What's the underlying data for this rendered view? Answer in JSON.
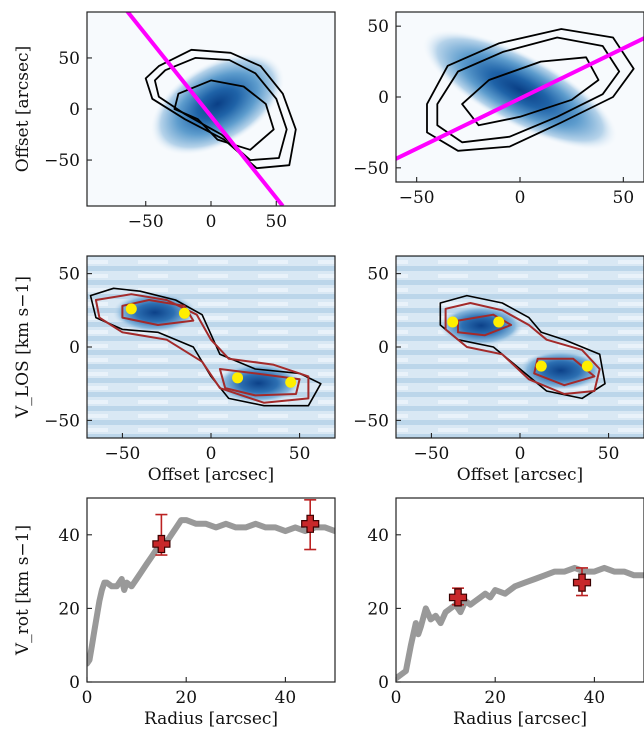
{
  "chart_data": [
    {
      "type": "contour",
      "panel": "moment-map-left",
      "xlabel": "",
      "ylabel": "Offset [arcsec]",
      "xlim": [
        -95,
        95
      ],
      "ylim": [
        -95,
        95
      ],
      "xticks": [
        -50,
        0,
        50
      ],
      "yticks": [
        -50,
        0,
        50
      ],
      "xtick_labels": [
        "−50",
        "0",
        "50"
      ],
      "ytick_labels": [
        "−50",
        "0",
        "50"
      ],
      "cloud": {
        "cx": 5,
        "cy": 5,
        "rx": 45,
        "ry": 32,
        "angle_deg": -30
      },
      "contour_levels": [
        [
          [
            -40,
            42
          ],
          [
            -15,
            58
          ],
          [
            15,
            55
          ],
          [
            38,
            42
          ],
          [
            55,
            15
          ],
          [
            65,
            -20
          ],
          [
            60,
            -55
          ],
          [
            35,
            -58
          ],
          [
            10,
            -30
          ],
          [
            -20,
            -10
          ],
          [
            -45,
            10
          ],
          [
            -50,
            30
          ]
        ],
        [
          [
            -35,
            38
          ],
          [
            -12,
            50
          ],
          [
            14,
            48
          ],
          [
            34,
            35
          ],
          [
            50,
            10
          ],
          [
            58,
            -20
          ],
          [
            52,
            -48
          ],
          [
            30,
            -50
          ],
          [
            8,
            -25
          ],
          [
            -20,
            -5
          ],
          [
            -40,
            12
          ],
          [
            -43,
            28
          ]
        ],
        [
          [
            -25,
            15
          ],
          [
            0,
            28
          ],
          [
            25,
            22
          ],
          [
            42,
            5
          ],
          [
            48,
            -20
          ],
          [
            30,
            -40
          ],
          [
            5,
            -30
          ],
          [
            -10,
            -10
          ],
          [
            -28,
            0
          ]
        ]
      ],
      "line": {
        "x": [
          -70,
          55
        ],
        "y": [
          105,
          -95
        ],
        "color": "#ff00ff"
      }
    },
    {
      "type": "contour",
      "panel": "moment-map-right",
      "xlabel": "",
      "ylabel": "",
      "xlim": [
        -60,
        60
      ],
      "ylim": [
        -60,
        60
      ],
      "xticks": [
        -50,
        0,
        50
      ],
      "yticks": [
        -50,
        0,
        50
      ],
      "xtick_labels": [
        "−50",
        "0",
        "50"
      ],
      "ytick_labels": [
        "−50",
        "0",
        "50"
      ],
      "cloud": {
        "cx": 0,
        "cy": 5,
        "rx": 42,
        "ry": 20,
        "angle_deg": 28
      },
      "contour_levels": [
        [
          [
            -45,
            -5
          ],
          [
            -35,
            22
          ],
          [
            -10,
            38
          ],
          [
            20,
            48
          ],
          [
            45,
            42
          ],
          [
            55,
            20
          ],
          [
            45,
            0
          ],
          [
            20,
            -18
          ],
          [
            -5,
            -35
          ],
          [
            -30,
            -38
          ],
          [
            -45,
            -25
          ]
        ],
        [
          [
            -40,
            -5
          ],
          [
            -30,
            18
          ],
          [
            -8,
            32
          ],
          [
            18,
            42
          ],
          [
            40,
            36
          ],
          [
            48,
            18
          ],
          [
            40,
            2
          ],
          [
            18,
            -14
          ],
          [
            -5,
            -28
          ],
          [
            -28,
            -32
          ],
          [
            -40,
            -20
          ]
        ],
        [
          [
            -28,
            -5
          ],
          [
            -15,
            12
          ],
          [
            10,
            25
          ],
          [
            32,
            28
          ],
          [
            38,
            12
          ],
          [
            25,
            -2
          ],
          [
            0,
            -14
          ],
          [
            -20,
            -20
          ]
        ]
      ],
      "line": {
        "x": [
          -62,
          65
        ],
        "y": [
          -45,
          45
        ],
        "color": "#ff00ff"
      }
    },
    {
      "type": "pv-diagram",
      "panel": "pv-left",
      "xlabel": "Offset [arcsec]",
      "ylabel": "V_LOS [km s−1]",
      "xlim": [
        -70,
        70
      ],
      "ylim": [
        -62,
        62
      ],
      "xticks": [
        -50,
        0,
        50
      ],
      "yticks": [
        -50,
        0,
        50
      ],
      "xtick_labels": [
        "−50",
        "0",
        "50"
      ],
      "ytick_labels": [
        "−50",
        "0",
        "50"
      ],
      "black_contour": [
        [
          -68,
          35
        ],
        [
          -55,
          40
        ],
        [
          -40,
          38
        ],
        [
          -20,
          32
        ],
        [
          -5,
          22
        ],
        [
          5,
          -5
        ],
        [
          25,
          -15
        ],
        [
          50,
          -18
        ],
        [
          62,
          -25
        ],
        [
          55,
          -40
        ],
        [
          30,
          -40
        ],
        [
          10,
          -35
        ],
        [
          0,
          -20
        ],
        [
          -10,
          0
        ],
        [
          -30,
          10
        ],
        [
          -50,
          12
        ],
        [
          -65,
          20
        ]
      ],
      "red_contours": [
        [
          [
            -65,
            32
          ],
          [
            -45,
            36
          ],
          [
            -25,
            32
          ],
          [
            -8,
            22
          ],
          [
            0,
            5
          ],
          [
            10,
            -8
          ],
          [
            35,
            -12
          ],
          [
            55,
            -20
          ],
          [
            55,
            -35
          ],
          [
            30,
            -38
          ],
          [
            5,
            -28
          ],
          [
            -5,
            -10
          ],
          [
            -25,
            5
          ],
          [
            -50,
            10
          ],
          [
            -63,
            20
          ]
        ],
        [
          [
            -50,
            28
          ],
          [
            -35,
            32
          ],
          [
            -15,
            28
          ],
          [
            -10,
            18
          ],
          [
            -30,
            15
          ],
          [
            -50,
            20
          ]
        ],
        [
          [
            5,
            -15
          ],
          [
            25,
            -18
          ],
          [
            50,
            -22
          ],
          [
            48,
            -32
          ],
          [
            25,
            -33
          ],
          [
            8,
            -28
          ]
        ]
      ],
      "points": [
        {
          "x": -45,
          "y": 26
        },
        {
          "x": -15,
          "y": 23
        },
        {
          "x": 15,
          "y": -21
        },
        {
          "x": 45,
          "y": -24
        }
      ]
    },
    {
      "type": "pv-diagram",
      "panel": "pv-right",
      "xlabel": "Offset [arcsec]",
      "ylabel": "",
      "xlim": [
        -70,
        70
      ],
      "ylim": [
        -62,
        62
      ],
      "xticks": [
        -50,
        0,
        50
      ],
      "yticks": [
        -50,
        0,
        50
      ],
      "xtick_labels": [
        "−50",
        "0",
        "50"
      ],
      "ytick_labels": [
        "−50",
        "0",
        "50"
      ],
      "black_contour": [
        [
          -45,
          30
        ],
        [
          -30,
          35
        ],
        [
          -10,
          30
        ],
        [
          5,
          20
        ],
        [
          12,
          10
        ],
        [
          25,
          5
        ],
        [
          45,
          -5
        ],
        [
          48,
          -25
        ],
        [
          35,
          -35
        ],
        [
          15,
          -30
        ],
        [
          0,
          -15
        ],
        [
          -15,
          0
        ],
        [
          -35,
          5
        ],
        [
          -45,
          15
        ]
      ],
      "red_contours": [
        [
          [
            -42,
            26
          ],
          [
            -28,
            30
          ],
          [
            -10,
            25
          ],
          [
            5,
            15
          ],
          [
            15,
            5
          ],
          [
            35,
            -2
          ],
          [
            45,
            -15
          ],
          [
            42,
            -30
          ],
          [
            25,
            -32
          ],
          [
            5,
            -22
          ],
          [
            -10,
            -5
          ],
          [
            -30,
            0
          ],
          [
            -42,
            12
          ]
        ],
        [
          [
            -35,
            18
          ],
          [
            -15,
            22
          ],
          [
            -5,
            15
          ],
          [
            -20,
            8
          ],
          [
            -35,
            10
          ]
        ],
        [
          [
            10,
            -8
          ],
          [
            30,
            -8
          ],
          [
            42,
            -20
          ],
          [
            25,
            -26
          ],
          [
            8,
            -18
          ]
        ]
      ],
      "points": [
        {
          "x": -38,
          "y": 17
        },
        {
          "x": -12,
          "y": 17
        },
        {
          "x": 12,
          "y": -13
        },
        {
          "x": 38,
          "y": -13
        }
      ]
    },
    {
      "type": "line",
      "panel": "rotation-curve-left",
      "xlabel": "Radius [arcsec]",
      "ylabel": "V_rot [km s−1]",
      "xlim": [
        0,
        50
      ],
      "ylim": [
        0,
        50
      ],
      "xticks": [
        0,
        20,
        40
      ],
      "yticks": [
        0,
        20,
        40
      ],
      "xtick_labels": [
        "0",
        "20",
        "40"
      ],
      "ytick_labels": [
        "0",
        "20",
        "40"
      ],
      "series": [
        {
          "x": [
            0,
            0.5,
            1,
            1.5,
            2,
            2.5,
            3,
            3.5,
            4,
            5,
            6,
            7,
            7.5,
            8,
            9,
            10,
            11,
            12,
            13,
            14,
            15,
            16,
            17,
            18,
            19,
            20,
            22,
            24,
            26,
            28,
            30,
            32,
            34,
            36,
            38,
            40,
            42,
            44,
            46,
            48,
            50
          ],
          "y": [
            5,
            6,
            10,
            14,
            18,
            22,
            25,
            27,
            27,
            26,
            26,
            28,
            25,
            27,
            26,
            28,
            30,
            32,
            34,
            36,
            37,
            38,
            40,
            42,
            44,
            44,
            43,
            43,
            42,
            43,
            42,
            42,
            43,
            42,
            42,
            41,
            42,
            41,
            42,
            42,
            41
          ]
        }
      ],
      "errorbars": [
        {
          "x": 15,
          "y": 37.5,
          "yerr": [
            3,
            8
          ],
          "xerr": 1.5
        },
        {
          "x": 45,
          "y": 43,
          "yerr": [
            7,
            6.5
          ],
          "xerr": 1.5
        }
      ]
    },
    {
      "type": "line",
      "panel": "rotation-curve-right",
      "xlabel": "Radius [arcsec]",
      "ylabel": "",
      "xlim": [
        0,
        50
      ],
      "ylim": [
        0,
        50
      ],
      "xticks": [
        0,
        20,
        40
      ],
      "yticks": [
        0,
        20,
        40
      ],
      "xtick_labels": [
        "0",
        "20",
        "40"
      ],
      "ytick_labels": [
        "0",
        "20",
        "40"
      ],
      "series": [
        {
          "x": [
            0,
            1,
            2,
            3,
            4,
            4.5,
            5,
            6,
            7,
            8,
            9,
            10,
            11,
            12,
            13,
            14,
            15,
            16,
            17,
            18,
            19,
            20,
            22,
            24,
            26,
            28,
            30,
            32,
            34,
            36,
            38,
            40,
            42,
            44,
            46,
            48,
            50
          ],
          "y": [
            1,
            2,
            3,
            10,
            16,
            13,
            15,
            20,
            17,
            18,
            16,
            19,
            20,
            21,
            19,
            22,
            21,
            22,
            23,
            24,
            23,
            25,
            24,
            26,
            27,
            28,
            29,
            30,
            30,
            31,
            30,
            30,
            31,
            30,
            30,
            29,
            29
          ]
        }
      ],
      "errorbars": [
        {
          "x": 12.5,
          "y": 23,
          "yerr": [
            2,
            2.5
          ],
          "xerr": 1.5
        },
        {
          "x": 37.5,
          "y": 27,
          "yerr": [
            3.5,
            4
          ],
          "xerr": 1.5
        }
      ]
    }
  ]
}
